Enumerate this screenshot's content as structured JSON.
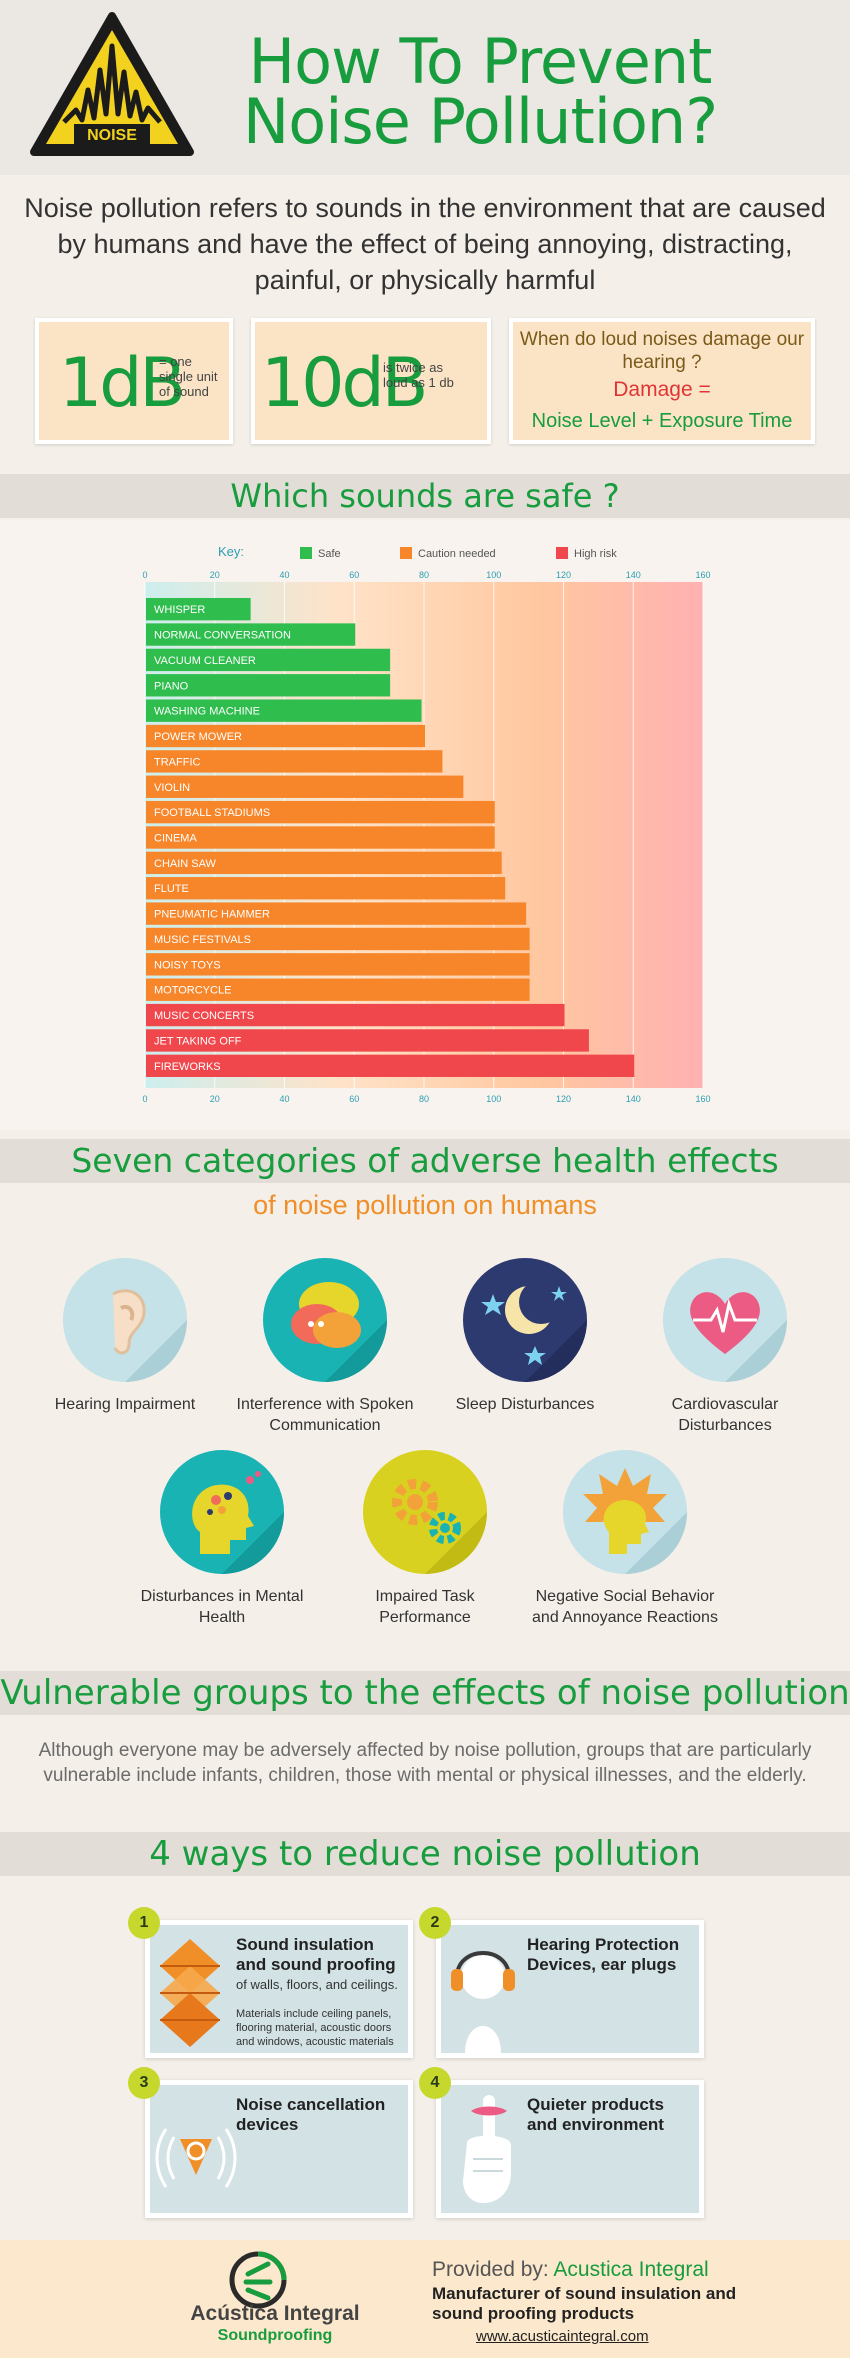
{
  "header": {
    "logo_text": "NOISE",
    "title_line1": "How To Prevent",
    "title_line2": "Noise Pollution?"
  },
  "intro": "Noise pollution refers to sounds in the environment that are caused by humans and have the effect of being annoying, distracting, painful, or physically harmful",
  "db": {
    "box1_big": "1dB",
    "box1_small": "= one single unit of sound",
    "box2_big": "10dB",
    "box2_small": "is twice as loud as 1 db",
    "question": "When do loud noises damage our hearing ?",
    "damage": "Damage =",
    "formula": "Noise Level + Exposure Time"
  },
  "chart_heading": "Which sounds are safe ?",
  "chart_data": {
    "type": "bar",
    "orientation": "horizontal",
    "key_label": "Key:",
    "legend": [
      {
        "name": "Safe",
        "color": "#2fbd4e"
      },
      {
        "name": "Caution needed",
        "color": "#f7862a"
      },
      {
        "name": "High risk",
        "color": "#f0474c"
      }
    ],
    "xlim": [
      0,
      160
    ],
    "ticks": [
      0,
      20,
      40,
      60,
      80,
      100,
      120,
      140,
      160
    ],
    "categories": [
      "WHISPER",
      "NORMAL CONVERSATION",
      "VACUUM CLEANER",
      "PIANO",
      "WASHING MACHINE",
      "POWER MOWER",
      "TRAFFIC",
      "VIOLIN",
      "FOOTBALL STADIUMS",
      "CINEMA",
      "CHAIN SAW",
      "FLUTE",
      "PNEUMATIC HAMMER",
      "MUSIC FESTIVALS",
      "NOISY TOYS",
      "MOTORCYCLE",
      "MUSIC CONCERTS",
      "JET TAKING OFF",
      "FIREWORKS"
    ],
    "values": [
      30,
      60,
      70,
      70,
      79,
      80,
      85,
      91,
      100,
      100,
      102,
      103,
      109,
      110,
      110,
      110,
      120,
      127,
      140
    ],
    "levels": [
      "Safe",
      "Safe",
      "Safe",
      "Safe",
      "Safe",
      "Caution needed",
      "Caution needed",
      "Caution needed",
      "Caution needed",
      "Caution needed",
      "Caution needed",
      "Caution needed",
      "Caution needed",
      "Caution needed",
      "Caution needed",
      "Caution needed",
      "High risk",
      "High risk",
      "High risk"
    ]
  },
  "health": {
    "heading": "Seven categories of adverse health effects",
    "subheading": "of noise pollution on humans",
    "items": [
      {
        "label": "Hearing Impairment",
        "icon": "ear-icon",
        "color": "#bfe0e6"
      },
      {
        "label": "Interference with Spoken Communication",
        "icon": "speech-bubbles-icon",
        "color": "#1ab3b3"
      },
      {
        "label": "Sleep Disturbances",
        "icon": "moon-stars-icon",
        "color": "#2d3a70"
      },
      {
        "label": "Cardiovascular Disturbances",
        "icon": "heart-pulse-icon",
        "color": "#bfe0e6"
      },
      {
        "label": "Disturbances in Mental Health",
        "icon": "head-brain-icon",
        "color": "#1ab3b3"
      },
      {
        "label": "Impaired Task Performance",
        "icon": "gears-icon",
        "color": "#d6cf1d"
      },
      {
        "label": "Negative Social Behavior and Annoyance Reactions",
        "icon": "angry-head-icon",
        "color": "#bfe0e6"
      }
    ]
  },
  "vulnerable": {
    "heading": "Vulnerable groups to the effects of noise pollution",
    "text": "Although everyone may be adversely affected by noise pollution, groups that are particularly vulnerable include infants, children, those with mental or physical illnesses, and the elderly."
  },
  "ways": {
    "heading": "4 ways to reduce noise pollution",
    "items": [
      {
        "num": "1",
        "title": "Sound insulation and sound proofing",
        "sub": "of walls, floors, and ceilings.",
        "note": "Materials include ceiling panels, flooring material, acoustic doors and windows, acoustic materials",
        "icon": "acoustic-panel-icon"
      },
      {
        "num": "2",
        "title": "Hearing Protection Devices, ear plugs",
        "sub": "",
        "note": "",
        "icon": "earmuffs-icon"
      },
      {
        "num": "3",
        "title": "Noise cancellation devices",
        "sub": "",
        "note": "",
        "icon": "noise-cancel-icon"
      },
      {
        "num": "4",
        "title": "Quieter products and environment",
        "sub": "",
        "note": "",
        "icon": "shush-icon"
      }
    ]
  },
  "footer": {
    "brand": "Acústica Integral",
    "brand_sub": "Soundproofing",
    "provided_by": "Provided by:",
    "provider": "Acustica Integral",
    "maker": "Manufacturer of sound insulation and sound  proofing products",
    "url": "www.acusticaintegral.com"
  }
}
